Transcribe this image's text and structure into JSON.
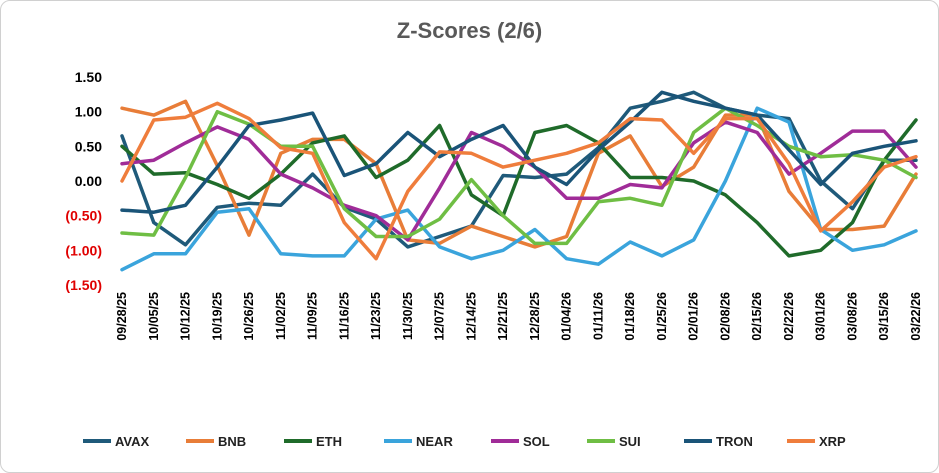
{
  "chart_data": {
    "type": "line",
    "title": "Z-Scores (2/6)",
    "xlabel": "",
    "ylabel": "",
    "ylim": [
      -1.5,
      1.5
    ],
    "yticks": [
      {
        "value": 1.5,
        "label": "1.50",
        "color": "#000000"
      },
      {
        "value": 1.0,
        "label": "1.00",
        "color": "#000000"
      },
      {
        "value": 0.5,
        "label": "0.50",
        "color": "#000000"
      },
      {
        "value": 0.0,
        "label": "0.00",
        "color": "#000000"
      },
      {
        "value": -0.5,
        "label": "(0.50)",
        "color": "#e00000"
      },
      {
        "value": -1.0,
        "label": "(1.00)",
        "color": "#e00000"
      },
      {
        "value": -1.5,
        "label": "(1.50)",
        "color": "#e00000"
      }
    ],
    "grid": false,
    "legend_position": "bottom",
    "x": [
      "09/28/25",
      "10/05/25",
      "10/12/25",
      "10/19/25",
      "10/26/25",
      "11/02/25",
      "11/09/25",
      "11/16/25",
      "11/23/25",
      "11/30/25",
      "12/07/25",
      "12/14/25",
      "12/21/25",
      "12/28/25",
      "01/04/26",
      "01/11/26",
      "01/18/26",
      "01/25/26",
      "02/01/26",
      "02/08/26",
      "02/15/26",
      "02/22/26",
      "03/01/26",
      "03/08/26",
      "03/15/26",
      "03/22/26"
    ],
    "series": [
      {
        "name": "AVAX",
        "color": "#1f5a7a",
        "values": [
          0.65,
          -0.6,
          -0.92,
          -0.38,
          -0.32,
          -0.35,
          0.1,
          -0.38,
          -0.55,
          -0.95,
          -0.8,
          -0.65,
          0.08,
          0.05,
          0.1,
          0.48,
          1.05,
          1.15,
          1.28,
          1.05,
          0.95,
          0.9,
          0.0,
          -0.4,
          0.3,
          0.3
        ]
      },
      {
        "name": "BNB",
        "color": "#e87d38",
        "values": [
          1.05,
          0.95,
          1.15,
          0.22,
          -0.78,
          0.4,
          0.6,
          0.6,
          0.25,
          -0.85,
          -0.9,
          -0.65,
          -0.8,
          -0.95,
          -0.8,
          0.4,
          0.65,
          -0.08,
          0.2,
          0.95,
          0.95,
          -0.15,
          -0.7,
          -0.7,
          -0.65,
          0.1
        ]
      },
      {
        "name": "ETH",
        "color": "#1f6b2a",
        "values": [
          0.5,
          0.1,
          0.12,
          -0.05,
          -0.25,
          0.1,
          0.55,
          0.65,
          0.05,
          0.3,
          0.8,
          -0.2,
          -0.5,
          0.7,
          0.8,
          0.55,
          0.05,
          0.05,
          0.0,
          -0.2,
          -0.6,
          -1.08,
          -1.0,
          -0.6,
          0.3,
          0.88
        ]
      },
      {
        "name": "NEAR",
        "color": "#3aa4dc",
        "values": [
          -1.28,
          -1.05,
          -1.05,
          -0.45,
          -0.4,
          -1.05,
          -1.08,
          -1.08,
          -0.55,
          -0.42,
          -0.95,
          -1.12,
          -1.0,
          -0.7,
          -1.12,
          -1.2,
          -0.88,
          -1.08,
          -0.85,
          0.0,
          1.05,
          0.85,
          -0.7,
          -1.0,
          -0.92,
          -0.72
        ]
      },
      {
        "name": "SOL",
        "color": "#a02c98",
        "values": [
          0.25,
          0.3,
          0.55,
          0.78,
          0.6,
          0.1,
          -0.1,
          -0.35,
          -0.5,
          -0.85,
          -0.1,
          0.7,
          0.5,
          0.2,
          -0.25,
          -0.25,
          -0.05,
          -0.1,
          0.55,
          0.85,
          0.7,
          0.1,
          0.4,
          0.72,
          0.72,
          0.2
        ]
      },
      {
        "name": "SUI",
        "color": "#6fbe44",
        "values": [
          -0.75,
          -0.78,
          0.05,
          1.0,
          0.82,
          0.5,
          0.5,
          -0.4,
          -0.8,
          -0.8,
          -0.55,
          0.02,
          -0.5,
          -0.9,
          -0.9,
          -0.3,
          -0.25,
          -0.35,
          0.7,
          1.05,
          0.8,
          0.5,
          0.35,
          0.38,
          0.3,
          0.05
        ]
      },
      {
        "name": "TRON",
        "color": "#1a5478",
        "values": [
          -0.42,
          -0.45,
          -0.35,
          0.2,
          0.8,
          0.88,
          0.98,
          0.08,
          0.25,
          0.7,
          0.35,
          0.6,
          0.8,
          0.2,
          -0.05,
          0.45,
          0.85,
          1.28,
          1.15,
          1.05,
          0.95,
          0.45,
          -0.05,
          0.4,
          0.5,
          0.58
        ]
      },
      {
        "name": "XRP",
        "color": "#ef7d3c",
        "values": [
          0.0,
          0.88,
          0.92,
          1.12,
          0.9,
          0.48,
          0.4,
          -0.6,
          -1.12,
          -0.15,
          0.42,
          0.4,
          0.2,
          0.3,
          0.4,
          0.55,
          0.9,
          0.88,
          0.4,
          0.9,
          0.9,
          0.25,
          -0.72,
          -0.3,
          0.2,
          0.35
        ]
      }
    ]
  }
}
